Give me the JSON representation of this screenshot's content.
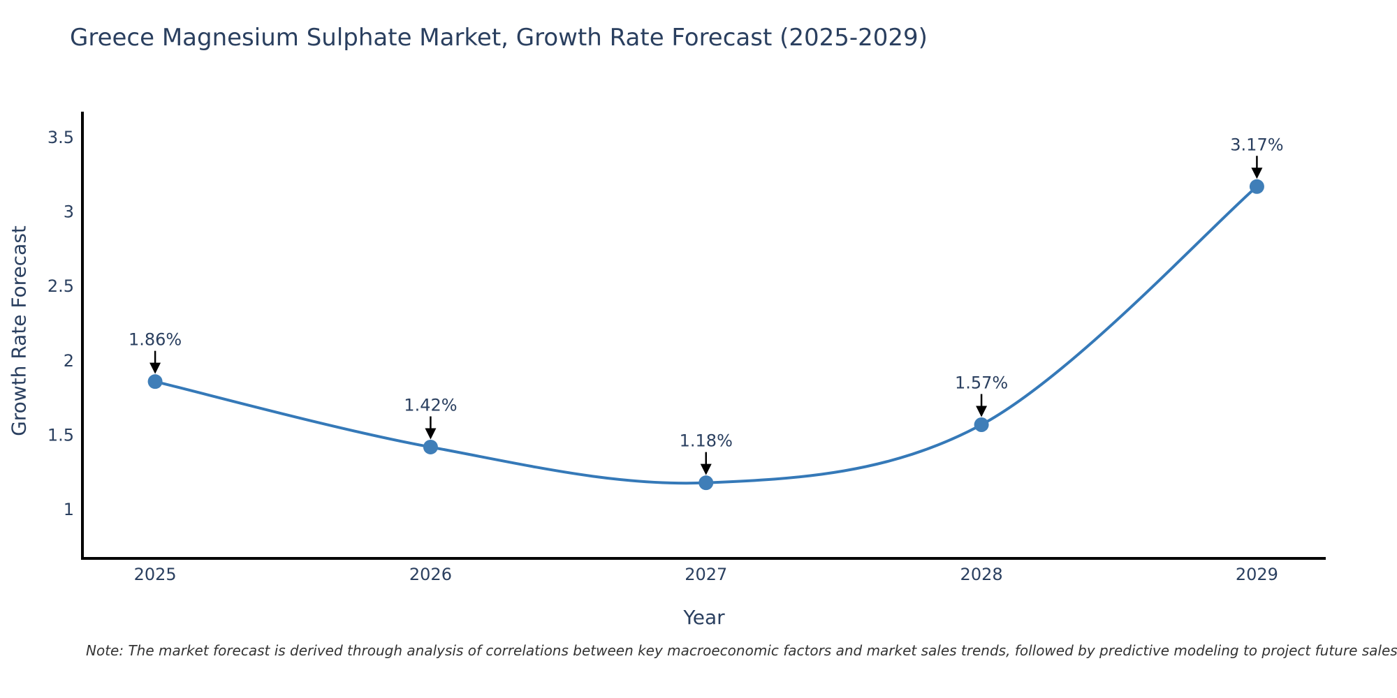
{
  "figure": {
    "title": "Greece Magnesium Sulphate Market, Growth Rate Forecast (2025-2029)",
    "note": "Note: The market forecast is derived through analysis of correlations between key macroeconomic factors and market sales trends, followed by predictive modeling to project future sales"
  },
  "chart_data": {
    "type": "line",
    "title": "Greece Magnesium Sulphate Market, Growth Rate Forecast (2025-2029)",
    "xlabel": "Year",
    "ylabel": "Growth Rate Forecast",
    "categories": [
      2025,
      2026,
      2027,
      2028,
      2029
    ],
    "values": [
      1.86,
      1.42,
      1.18,
      1.57,
      3.17
    ],
    "point_labels": [
      "1.86%",
      "1.42%",
      "1.18%",
      "1.57%",
      "3.17%"
    ],
    "yticks": [
      1,
      1.5,
      2,
      2.5,
      3,
      3.5
    ],
    "ylim": [
      0.672,
      3.673
    ],
    "xlim": [
      2024.736,
      2029.25
    ],
    "line_shape": "spline",
    "grid": false,
    "legend_position": "none",
    "colors": {
      "line": "#3579b8",
      "marker": "#3f7eb8",
      "axis": "#000000",
      "text": "#2a3f5f",
      "arrow": "#000000",
      "background": "#ffffff"
    }
  }
}
